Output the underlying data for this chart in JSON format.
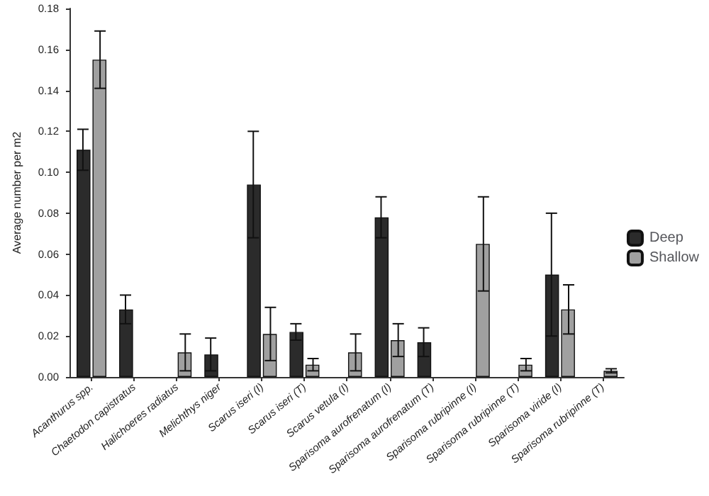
{
  "chart_data": {
    "type": "bar",
    "ylabel": "Average number per m2",
    "categories": [
      "Acanthurus spp.",
      "Chaetodon capistratus",
      "Halichoeres radiatus",
      "Melichthys niger",
      "Scarus iseri (I)",
      "Scarus iseri (T)",
      "Scarus vetula (I)",
      "Sparisoma aurofrenatum (I)",
      "Sparisoma aurofrenatum (T)",
      "Sparisoma rubripinne (I)",
      "Sparisoma rubripinne (T)",
      "Sparisoma viride (I)",
      "Sparisoma rubripinne (T)"
    ],
    "series": [
      {
        "name": "Deep",
        "color": "#2b2b2b",
        "values": [
          0.111,
          0.033,
          null,
          0.011,
          0.094,
          0.022,
          null,
          0.078,
          0.017,
          null,
          null,
          0.05,
          null
        ],
        "errors": [
          0.01,
          0.007,
          null,
          0.008,
          0.026,
          0.004,
          null,
          0.01,
          0.007,
          null,
          null,
          0.03,
          null
        ]
      },
      {
        "name": "Shallow",
        "color": "#a0a0a0",
        "values": [
          0.155,
          null,
          0.012,
          null,
          0.021,
          0.006,
          0.012,
          0.018,
          null,
          0.065,
          0.006,
          0.033,
          0.003
        ],
        "errors": [
          0.014,
          null,
          0.009,
          null,
          0.013,
          0.003,
          0.009,
          0.008,
          null,
          0.023,
          0.003,
          0.012,
          0.001
        ]
      }
    ],
    "ylim": [
      0,
      0.18
    ],
    "yticks": [
      {
        "value": 0,
        "label": "0.00"
      },
      {
        "value": 0.02,
        "label": "0.02"
      },
      {
        "value": 0.04,
        "label": "0.04"
      },
      {
        "value": 0.06,
        "label": "0.06"
      },
      {
        "value": 0.08,
        "label": "0.08"
      },
      {
        "value": 0.1,
        "label": "0.10"
      },
      {
        "value": 0.12,
        "label": "0.12"
      },
      {
        "value": 0.14,
        "label": "0.14"
      },
      {
        "value": 0.16,
        "label": "0.16"
      },
      {
        "value": 0.18,
        "label": "0.18"
      }
    ],
    "grid": false,
    "legend": "right"
  }
}
